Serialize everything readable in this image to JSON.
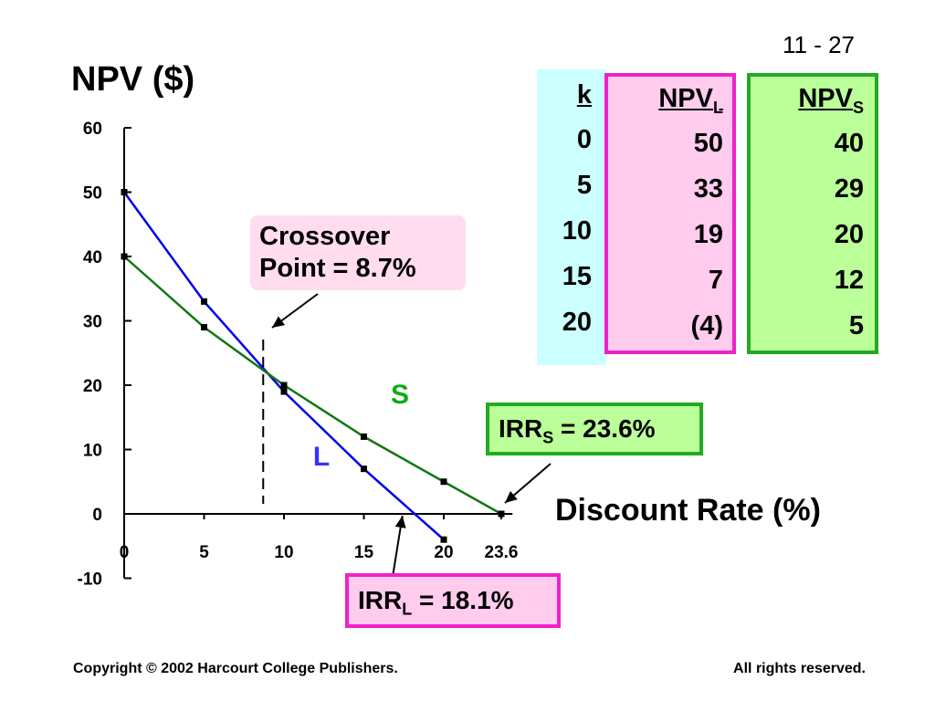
{
  "slide_number": "11 - 27",
  "chart_data": {
    "type": "line",
    "ylabel": "NPV ($)",
    "xlabel": "Discount Rate (%)",
    "x_ticks": [
      "0",
      "5",
      "10",
      "15",
      "20",
      "23.6"
    ],
    "y_ticks": [
      "60",
      "50",
      "40",
      "30",
      "20",
      "10",
      "0",
      "-10"
    ],
    "ylim": [
      -10,
      60
    ],
    "series": [
      {
        "name": "L",
        "color": "#0000ee",
        "points": [
          [
            0,
            50
          ],
          [
            5,
            33
          ],
          [
            10,
            19
          ],
          [
            15,
            7
          ],
          [
            20,
            -4
          ]
        ]
      },
      {
        "name": "S",
        "color": "#117711",
        "points": [
          [
            0,
            40
          ],
          [
            5,
            29
          ],
          [
            10,
            20
          ],
          [
            15,
            12
          ],
          [
            20,
            5
          ],
          [
            23.6,
            0
          ]
        ]
      }
    ],
    "series_label_colors": {
      "L": "#3333ff",
      "S": "#11aa11"
    },
    "crossover_x": 8.7,
    "irr_l_x": 18.1,
    "irr_s_x": 23.6
  },
  "table": {
    "k_header": "k",
    "npvl_header": "NPV",
    "npvl_sub": "L",
    "npvs_header": "NPV",
    "npvs_sub": "S",
    "rows": [
      {
        "k": "0",
        "npvl": "50",
        "npvs": "40"
      },
      {
        "k": "5",
        "npvl": "33",
        "npvs": "29"
      },
      {
        "k": "10",
        "npvl": "19",
        "npvs": "20"
      },
      {
        "k": "15",
        "npvl": "7",
        "npvs": "12"
      },
      {
        "k": "20",
        "npvl": "(4)",
        "npvs": "5"
      }
    ]
  },
  "callouts": {
    "crossover_line1": "Crossover",
    "crossover_line2": "Point  =  8.7%",
    "irr_s_prefix": "IRR",
    "irr_s_sub": "S",
    "irr_s_value": " = 23.6%",
    "irr_l_prefix": "IRR",
    "irr_l_sub": "L",
    "irr_l_value": " = 18.1%"
  },
  "footer": {
    "copyright": "Copyright © 2002 Harcourt College Publishers.",
    "rights": "All rights reserved."
  }
}
